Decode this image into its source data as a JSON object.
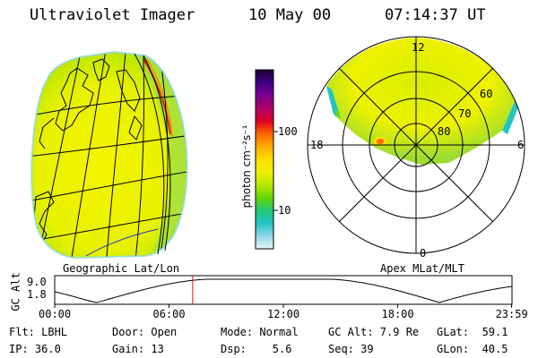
{
  "header": {
    "instrument": "Ultraviolet Imager",
    "date": "10 May 00",
    "time": "07:14:37 UT"
  },
  "colorbar": {
    "unit_label": "photon cm⁻²s⁻¹",
    "ticks": [
      {
        "label": "100",
        "value": 100
      },
      {
        "label": "10",
        "value": 10
      }
    ],
    "colors": [
      "#1a0033",
      "#400080",
      "#7a0090",
      "#b0006a",
      "#dd0022",
      "#ff6600",
      "#ffaa00",
      "#ffdd00",
      "#eef000",
      "#b8e600",
      "#66d600",
      "#22c873",
      "#22c4c4",
      "#8fd8e6",
      "#e8f4f8"
    ]
  },
  "geo_panel": {
    "label": "Geographic Lat/Lon"
  },
  "polar_panel": {
    "label": "Apex MLat/MLT",
    "mlt_labels": [
      {
        "label": "12",
        "angle": 90
      },
      {
        "label": "18",
        "angle": 180
      },
      {
        "label": "6",
        "angle": 0
      },
      {
        "label": "0",
        "angle": 270
      }
    ],
    "lat_labels": [
      {
        "label": "60",
        "lat": 60
      },
      {
        "label": "70",
        "lat": 70
      },
      {
        "label": "80",
        "lat": 80
      }
    ]
  },
  "altitude_plot": {
    "ylabel": "GC Alt",
    "y_ticks": [
      {
        "label": "9.0",
        "value": 9.0
      },
      {
        "label": "1.8",
        "value": 1.8
      }
    ],
    "x_ticks": [
      {
        "label": "00:00",
        "hour": 0
      },
      {
        "label": "06:00",
        "hour": 6
      },
      {
        "label": "12:00",
        "hour": 12
      },
      {
        "label": "18:00",
        "hour": 18
      },
      {
        "label": "23:59",
        "hour": 23.98
      }
    ],
    "current_hour": 7.24,
    "marker_color": "#ff0000"
  },
  "footer": {
    "flt": "Flt: LBHL",
    "ip": "IP: 36.0",
    "door": "Door: Open",
    "gain": "Gain: 13",
    "mode": "Mode: Normal",
    "dsp": "Dsp:    5.6",
    "gc_alt": "GC Alt: 7.9 Re",
    "seq": "Seq: 39",
    "glat": "GLat:  59.1",
    "glon": "GLon:  40.5"
  }
}
